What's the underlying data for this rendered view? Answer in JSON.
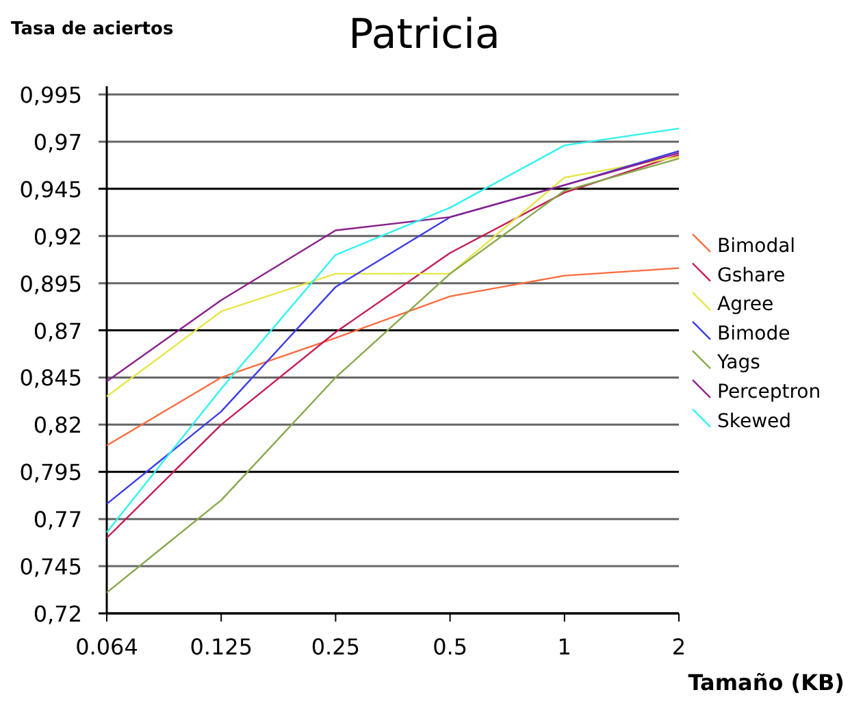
{
  "chart_data": {
    "type": "line",
    "title": "Patricia",
    "ylabel": "Tasa de aciertos",
    "xlabel": "Tamaño (KB)",
    "categories": [
      "0.064",
      "0.125",
      "0.25",
      "0.5",
      "1",
      "2"
    ],
    "series": [
      {
        "name": "Bimodal",
        "color": "#ff6a3d",
        "values": [
          0.809,
          0.845,
          0.866,
          0.888,
          0.899,
          0.903
        ]
      },
      {
        "name": "Gshare",
        "color": "#c41a55",
        "values": [
          0.76,
          0.82,
          0.869,
          0.911,
          0.943,
          0.963
        ]
      },
      {
        "name": "Agree",
        "color": "#e6e64a",
        "values": [
          0.835,
          0.88,
          0.9,
          0.9,
          0.951,
          0.962
        ]
      },
      {
        "name": "Bimode",
        "color": "#3b3bea",
        "values": [
          0.778,
          0.827,
          0.893,
          0.93,
          0.947,
          0.965
        ]
      },
      {
        "name": "Yags",
        "color": "#86a84a",
        "values": [
          0.731,
          0.78,
          0.845,
          0.9,
          0.944,
          0.961
        ]
      },
      {
        "name": "Perceptron",
        "color": "#8a1f8a",
        "values": [
          0.843,
          0.886,
          0.923,
          0.93,
          0.947,
          0.964
        ]
      },
      {
        "name": "Skewed",
        "color": "#2ef2f2",
        "values": [
          0.763,
          0.839,
          0.91,
          0.935,
          0.968,
          0.977
        ]
      }
    ],
    "ylim": [
      0.72,
      0.995
    ],
    "yticks": [
      {
        "value": 0.72,
        "label": "0,72"
      },
      {
        "value": 0.745,
        "label": "0,745"
      },
      {
        "value": 0.77,
        "label": "0,77"
      },
      {
        "value": 0.795,
        "label": "0,795"
      },
      {
        "value": 0.82,
        "label": "0,82"
      },
      {
        "value": 0.845,
        "label": "0,845"
      },
      {
        "value": 0.87,
        "label": "0,87"
      },
      {
        "value": 0.895,
        "label": "0,895"
      },
      {
        "value": 0.92,
        "label": "0,92"
      },
      {
        "value": 0.945,
        "label": "0,945"
      },
      {
        "value": 0.97,
        "label": "0,97"
      },
      {
        "value": 0.995,
        "label": "0,995"
      }
    ],
    "grid": "y",
    "legend": "right",
    "marker": "none",
    "line_style": "solid"
  }
}
